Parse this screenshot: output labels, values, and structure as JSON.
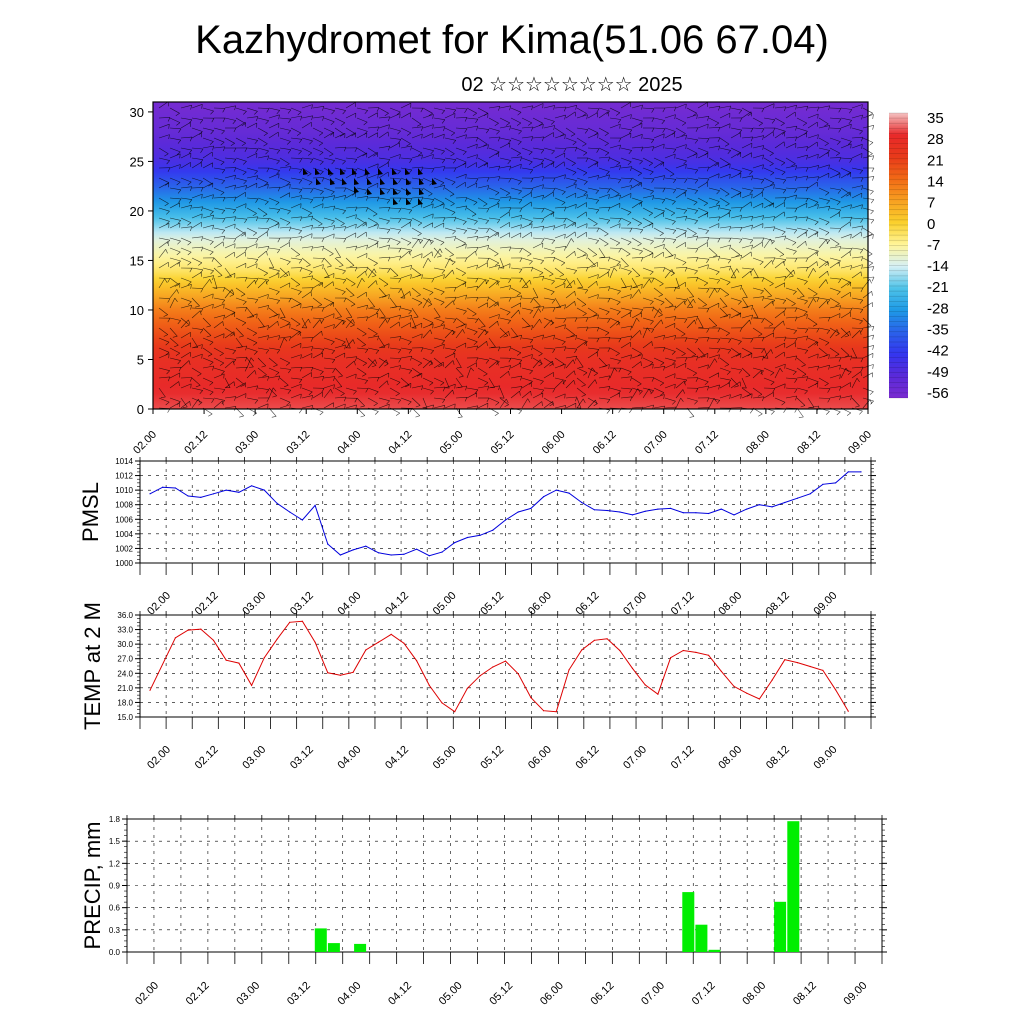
{
  "title": "Kazhydromet for Kima(51.06 67.04)",
  "subtitle": "02 ☆☆☆☆☆☆☆☆ 2025",
  "time_ticks": [
    "02.00",
    "02.12",
    "03.00",
    "03.12",
    "04.00",
    "04.12",
    "05.00",
    "05.12",
    "06.00",
    "06.12",
    "07.00",
    "07.12",
    "08.00",
    "08.12",
    "09.00"
  ],
  "chart_data": [
    {
      "type": "heatmap",
      "name_id": "vertical-cross-section",
      "title": "",
      "xlabel": "",
      "ylabel": "",
      "ylim": [
        0,
        31
      ],
      "yticks": [
        "0",
        "5",
        "10",
        "15",
        "20",
        "25",
        "30"
      ],
      "colorbar": {
        "labels": [
          "35",
          "28",
          "21",
          "14",
          "7",
          "0",
          "-7",
          "-14",
          "-21",
          "-28",
          "-35",
          "-42",
          "-49",
          "-56"
        ],
        "range": [
          -63,
          38
        ],
        "colors": [
          "#f4c2c2",
          "#e8292a",
          "#e83a1a",
          "#f26a16",
          "#f7a021",
          "#fbd12c",
          "#fff59a",
          "#d6f0f5",
          "#4ec3e9",
          "#1e9ae6",
          "#2a62ea",
          "#3436ef",
          "#5a2ad9",
          "#7a2cd0"
        ]
      },
      "profile": [
        {
          "z": 0,
          "t": 32
        },
        {
          "z": 5,
          "t": 27
        },
        {
          "z": 10,
          "t": 12
        },
        {
          "z": 14,
          "t": -5
        },
        {
          "z": 17,
          "t": -14
        },
        {
          "z": 20,
          "t": -28
        },
        {
          "z": 23,
          "t": -42
        },
        {
          "z": 25,
          "t": -52
        },
        {
          "z": 28,
          "t": -58
        },
        {
          "z": 31,
          "t": -62
        }
      ],
      "contains_wind_barbs": true
    },
    {
      "type": "line",
      "name_id": "pmsl",
      "title": "",
      "ylabel": "PMSL",
      "ylim": [
        1000,
        1014
      ],
      "yticks": [
        "1000",
        "1002",
        "1004",
        "1006",
        "1008",
        "1010",
        "1012",
        "1014"
      ],
      "color": "#0000dd",
      "x": [
        0,
        3,
        6,
        9,
        12,
        15,
        18,
        21,
        24,
        27,
        30,
        33,
        36,
        39,
        42,
        45,
        48,
        51,
        54,
        57,
        60,
        63,
        66,
        69,
        72,
        75,
        78,
        81,
        84,
        87,
        90,
        93,
        96,
        99,
        102,
        105,
        108,
        111,
        114,
        117,
        120,
        123,
        126,
        129,
        132,
        135,
        138,
        141,
        144,
        147,
        150,
        153,
        156,
        159,
        162,
        165,
        168
      ],
      "values": [
        1009.5,
        1010.4,
        1010.3,
        1009.2,
        1009.0,
        1009.5,
        1010.0,
        1009.7,
        1010.6,
        1010.0,
        1008.2,
        1007.0,
        1005.9,
        1007.9,
        1002.6,
        1001.1,
        1001.8,
        1002.3,
        1001.4,
        1001.1,
        1001.2,
        1001.9,
        1001.0,
        1001.5,
        1002.8,
        1003.5,
        1003.8,
        1004.5,
        1005.9,
        1007.0,
        1007.5,
        1009.1,
        1010.0,
        1009.6,
        1008.3,
        1007.3,
        1007.2,
        1007.0,
        1006.6,
        1007.1,
        1007.4,
        1007.5,
        1006.9,
        1006.9,
        1006.8,
        1007.4,
        1006.6,
        1007.4,
        1008.0,
        1007.7,
        1008.3,
        1008.9,
        1009.5,
        1010.8,
        1011.0,
        1012.5,
        1012.5
      ]
    },
    {
      "type": "line",
      "name_id": "temp2m",
      "title": "",
      "ylabel": "TEMP at 2 M",
      "ylim": [
        15,
        36
      ],
      "yticks": [
        "15.0",
        "18.0",
        "21.0",
        "24.0",
        "27.0",
        "30.0",
        "33.0",
        "36.0"
      ],
      "color": "#dd0000",
      "x": [
        0,
        6,
        9,
        12,
        15,
        18,
        21,
        24,
        27,
        30,
        33,
        36,
        39,
        42,
        45,
        48,
        51,
        54,
        57,
        60,
        63,
        66,
        69,
        72,
        75,
        78,
        81,
        84,
        87,
        90,
        93,
        96,
        99,
        102,
        105,
        108,
        111,
        114,
        117,
        120,
        123,
        126,
        129,
        132,
        135,
        138,
        141,
        144,
        147,
        150,
        153,
        156,
        159,
        162,
        165
      ],
      "values": [
        20.5,
        31.3,
        32.9,
        33.1,
        30.8,
        26.7,
        26.1,
        21.5,
        27.2,
        31.0,
        34.5,
        34.7,
        30.4,
        24.1,
        23.6,
        24.2,
        28.8,
        30.4,
        32.0,
        30.2,
        26.6,
        21.5,
        17.9,
        16.1,
        20.9,
        23.5,
        25.3,
        26.5,
        23.9,
        19.0,
        16.3,
        16.1,
        24.7,
        28.8,
        30.8,
        31.1,
        28.7,
        25.0,
        21.6,
        19.7,
        27.2,
        28.7,
        28.3,
        27.7,
        24.4,
        21.3,
        19.9,
        18.7,
        22.6,
        26.8,
        26.2,
        25.4,
        24.6,
        20.6,
        16.2
      ]
    },
    {
      "type": "bar",
      "name_id": "precip",
      "title": "",
      "ylabel": "PRECIP, mm",
      "ylim": [
        0,
        1.8
      ],
      "yticks": [
        "0.0",
        "0.3",
        "0.6",
        "0.9",
        "1.2",
        "1.5",
        "1.8"
      ],
      "color": "#00ee00",
      "x": [
        42,
        45,
        51,
        126,
        129,
        132,
        147,
        150
      ],
      "values": [
        0.32,
        0.12,
        0.11,
        0.81,
        0.37,
        0.03,
        0.68,
        1.77
      ]
    }
  ]
}
